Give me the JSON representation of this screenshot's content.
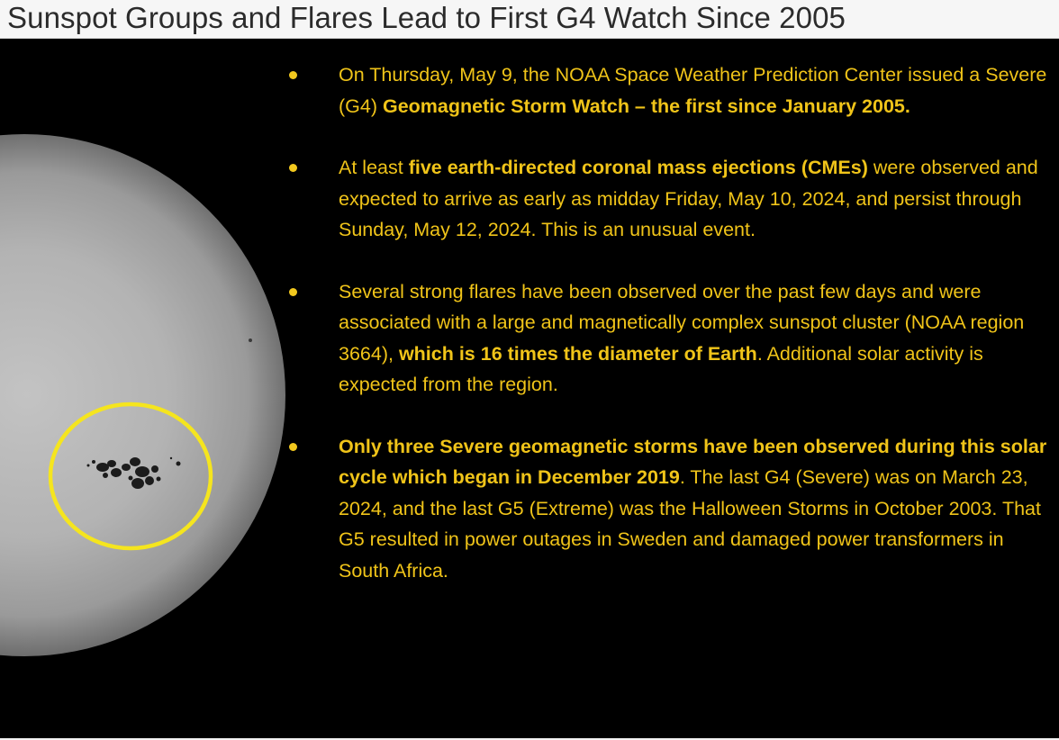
{
  "title": "Sunspot Groups and Flares Lead to First G4 Watch Since 2005",
  "colors": {
    "background": "#000000",
    "text": "#f0c419",
    "highlight_circle": "#f5e51e"
  },
  "image": {
    "subject": "sun-disk-with-sunspots",
    "icons": [
      "sunspot-highlight-circle-icon"
    ]
  },
  "bullets": [
    {
      "parts": [
        {
          "text": "On Thursday, May 9, the NOAA Space Weather Prediction Center issued a Severe (G4) ",
          "bold": false
        },
        {
          "text": "Geomagnetic Storm Watch  – the first since January 2005.",
          "bold": true
        }
      ]
    },
    {
      "parts": [
        {
          "text": "At least ",
          "bold": false
        },
        {
          "text": "five earth-directed coronal mass ejections (CMEs)",
          "bold": true
        },
        {
          "text": " were observed and expected to arrive as early as midday Friday, May 10, 2024, and persist through Sunday, May 12, 2024. This is an unusual event.",
          "bold": false
        }
      ]
    },
    {
      "parts": [
        {
          "text": "Several strong flares have been observed over the past few days and were associated with a large and magnetically complex sunspot cluster (NOAA region 3664), ",
          "bold": false
        },
        {
          "text": "which is 16 times the diameter of Earth",
          "bold": true
        },
        {
          "text": ". Additional solar activity is expected from the region.",
          "bold": false
        }
      ]
    },
    {
      "parts": [
        {
          "text": "Only three Severe geomagnetic storms have been observed during this solar cycle which began in December 2019",
          "bold": true
        },
        {
          "text": ". The last G4 (Severe) was on March 23, 2024, and the last G5 (Extreme) was the Halloween Storms in October 2003. That G5 resulted in power outages in Sweden and damaged power transformers in South Africa.",
          "bold": false
        }
      ]
    }
  ]
}
